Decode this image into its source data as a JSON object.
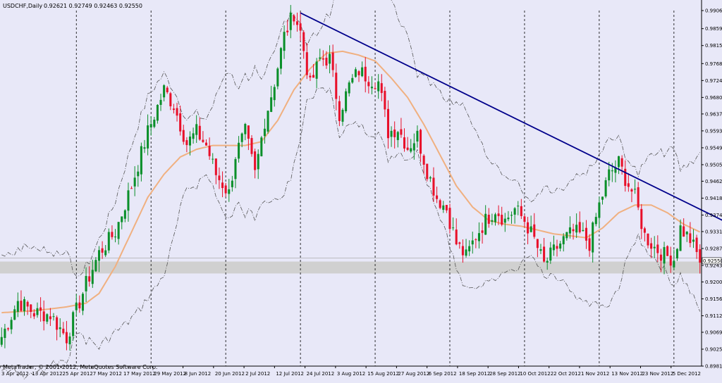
{
  "header": {
    "symbol": "USDCHF,Daily",
    "ohlc": "0.92621 0.92749 0.92463 0.92550"
  },
  "footer": {
    "copyright": "MetaTrader, © 2001-2012, MetaQuotes Software Corp."
  },
  "colors": {
    "background": "#e8e8f8",
    "bull": "#0a8f2a",
    "bear": "#e8102a",
    "moving_average": "#f0b080",
    "bollinger": "#555555",
    "trendline": "#00008b",
    "support_zone": "#d0d0d0",
    "period_separator": "#000000"
  },
  "chart_data": {
    "type": "candlestick",
    "title": "USDCHF,Daily",
    "ylim": [
      0.8981,
      0.9906
    ],
    "ytick_labels": [
      "0.99060",
      "0.98590",
      "0.98150",
      "0.97680",
      "0.97240",
      "0.96800",
      "0.96370",
      "0.95930",
      "0.95490",
      "0.95050",
      "0.94620",
      "0.94180",
      "0.93740",
      "0.93310",
      "0.92870",
      "0.92430",
      "0.92000",
      "0.91560",
      "0.91120",
      "0.90690",
      "0.90250",
      "0.89810"
    ],
    "current_price": "0.92550",
    "xtick_labels": [
      "3 Apr 2012",
      "13 Apr 2012",
      "25 Apr 2012",
      "7 May 2012",
      "17 May 2012",
      "29 May 2012",
      "8 Jun 2012",
      "20 Jun 2012",
      "2 Jul 2012",
      "12 Jul 2012",
      "24 Jul 2012",
      "3 Aug 2012",
      "15 Aug 2012",
      "27 Aug 2012",
      "6 Sep 2012",
      "18 Sep 2012",
      "28 Sep 2012",
      "10 Oct 2012",
      "22 Oct 2012",
      "1 Nov 2012",
      "13 Nov 2012",
      "23 Nov 2012",
      "5 Dec 2012"
    ],
    "close_path": [
      [
        0,
        0.9057
      ],
      [
        5,
        0.915
      ],
      [
        10,
        0.912
      ],
      [
        15,
        0.9115
      ],
      [
        20,
        0.9055
      ],
      [
        26,
        0.9195
      ],
      [
        30,
        0.9275
      ],
      [
        35,
        0.933
      ],
      [
        40,
        0.945
      ],
      [
        45,
        0.959
      ],
      [
        50,
        0.97
      ],
      [
        53,
        0.966
      ],
      [
        57,
        0.956
      ],
      [
        60,
        0.959
      ],
      [
        63,
        0.9555
      ],
      [
        66,
        0.948
      ],
      [
        70,
        0.943
      ],
      [
        72,
        0.953
      ],
      [
        75,
        0.959
      ],
      [
        78,
        0.948
      ],
      [
        81,
        0.962
      ],
      [
        84,
        0.972
      ],
      [
        87,
        0.984
      ],
      [
        90,
        0.99
      ],
      [
        92,
        0.985
      ],
      [
        95,
        0.971
      ],
      [
        98,
        0.978
      ],
      [
        101,
        0.978
      ],
      [
        104,
        0.964
      ],
      [
        107,
        0.971
      ],
      [
        110,
        0.975
      ],
      [
        113,
        0.973
      ],
      [
        116,
        0.972
      ],
      [
        119,
        0.959
      ],
      [
        122,
        0.96
      ],
      [
        125,
        0.955
      ],
      [
        128,
        0.958
      ],
      [
        131,
        0.949
      ],
      [
        134,
        0.942
      ],
      [
        137,
        0.939
      ],
      [
        140,
        0.93
      ],
      [
        143,
        0.9265
      ],
      [
        146,
        0.932
      ],
      [
        149,
        0.936
      ],
      [
        152,
        0.939
      ],
      [
        155,
        0.936
      ],
      [
        158,
        0.939
      ],
      [
        161,
        0.936
      ],
      [
        164,
        0.931
      ],
      [
        167,
        0.9245
      ],
      [
        170,
        0.928
      ],
      [
        173,
        0.931
      ],
      [
        176,
        0.933
      ],
      [
        179,
        0.932
      ],
      [
        181,
        0.93
      ],
      [
        184,
        0.94
      ],
      [
        187,
        0.948
      ],
      [
        190,
        0.951
      ],
      [
        192,
        0.947
      ],
      [
        195,
        0.942
      ],
      [
        198,
        0.932
      ],
      [
        201,
        0.929
      ],
      [
        204,
        0.927
      ],
      [
        207,
        0.926
      ],
      [
        209,
        0.934
      ],
      [
        212,
        0.931
      ],
      [
        215,
        0.9255
      ]
    ],
    "moving_average": [
      [
        0,
        0.912
      ],
      [
        10,
        0.9125
      ],
      [
        20,
        0.9135
      ],
      [
        26,
        0.9145
      ],
      [
        30,
        0.917
      ],
      [
        35,
        0.924
      ],
      [
        40,
        0.933
      ],
      [
        45,
        0.942
      ],
      [
        50,
        0.948
      ],
      [
        55,
        0.9525
      ],
      [
        60,
        0.9545
      ],
      [
        65,
        0.9555
      ],
      [
        70,
        0.9555
      ],
      [
        75,
        0.9555
      ],
      [
        80,
        0.9565
      ],
      [
        85,
        0.962
      ],
      [
        90,
        0.97
      ],
      [
        95,
        0.9755
      ],
      [
        100,
        0.9795
      ],
      [
        105,
        0.98
      ],
      [
        110,
        0.979
      ],
      [
        115,
        0.9775
      ],
      [
        120,
        0.973
      ],
      [
        125,
        0.968
      ],
      [
        130,
        0.961
      ],
      [
        135,
        0.953
      ],
      [
        140,
        0.945
      ],
      [
        145,
        0.9395
      ],
      [
        150,
        0.936
      ],
      [
        155,
        0.935
      ],
      [
        160,
        0.9345
      ],
      [
        165,
        0.9335
      ],
      [
        170,
        0.9325
      ],
      [
        175,
        0.932
      ],
      [
        180,
        0.9315
      ],
      [
        185,
        0.934
      ],
      [
        190,
        0.938
      ],
      [
        195,
        0.94
      ],
      [
        200,
        0.94
      ],
      [
        205,
        0.938
      ],
      [
        210,
        0.935
      ],
      [
        215,
        0.933
      ]
    ],
    "trendline": [
      [
        92,
        0.99
      ],
      [
        222,
        0.936
      ]
    ],
    "support_zone": [
      0.9222,
      0.9253
    ]
  }
}
